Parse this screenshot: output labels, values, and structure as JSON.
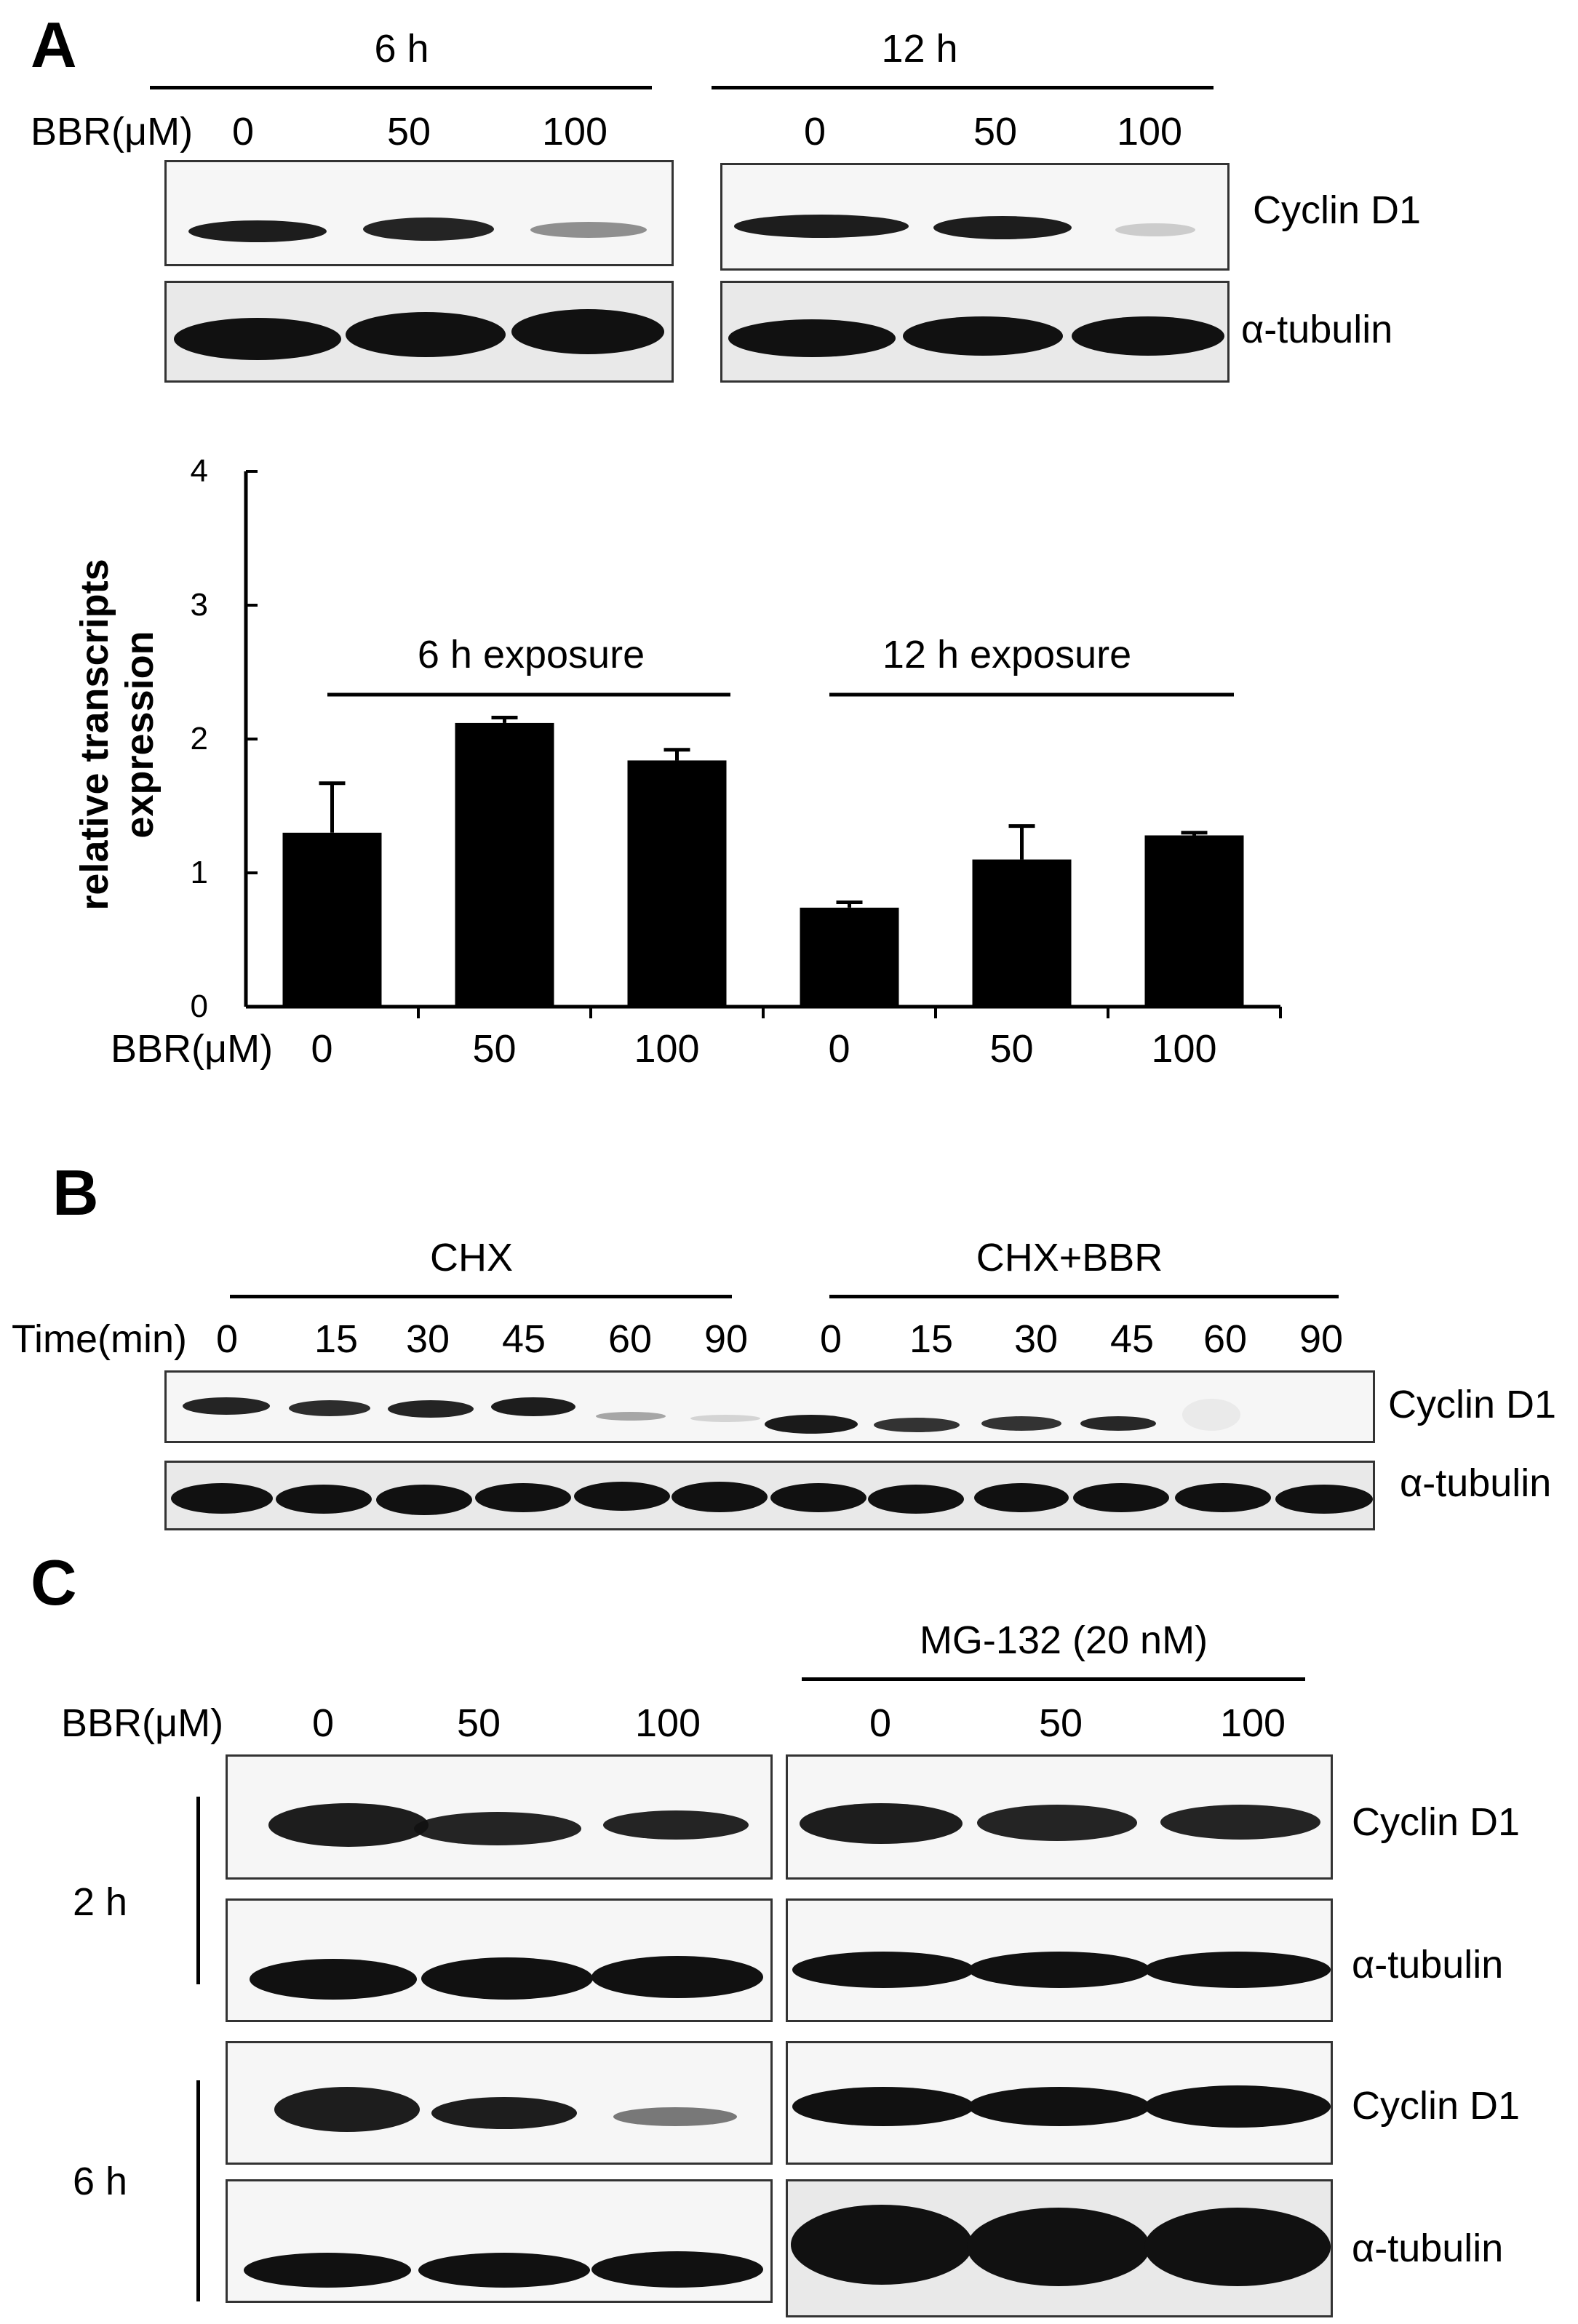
{
  "panel_a": {
    "letter": "A",
    "time_labels": [
      "6 h",
      "12 h"
    ],
    "bbr_label": "BBR(μM)",
    "doses": [
      "0",
      "50",
      "100"
    ],
    "protein_labels": [
      "Cyclin D1",
      "α-tubulin"
    ]
  },
  "chart_data": {
    "type": "bar",
    "ylabel": "relative transcripts expression",
    "ylim": [
      0,
      4
    ],
    "yticks": [
      "0",
      "1",
      "2",
      "3",
      "4"
    ],
    "x_axis_label": "BBR(μM)",
    "categories": [
      "0",
      "50",
      "100",
      "0",
      "50",
      "100"
    ],
    "values": [
      1.3,
      2.12,
      1.84,
      0.74,
      1.1,
      1.28
    ],
    "errors": [
      0.37,
      0.04,
      0.08,
      0.04,
      0.25,
      0.02
    ],
    "bar_color": "#000000",
    "group_labels": [
      "6 h exposure",
      "12 h exposure"
    ],
    "grid": false
  },
  "panel_b": {
    "letter": "B",
    "group_labels": [
      "CHX",
      "CHX+BBR"
    ],
    "time_label": "Time(min)",
    "times": [
      "0",
      "15",
      "30",
      "45",
      "60",
      "90",
      "0",
      "15",
      "30",
      "45",
      "60",
      "90"
    ],
    "protein_labels": [
      "Cyclin D1",
      "α-tubulin"
    ]
  },
  "panel_c": {
    "letter": "C",
    "treatment_label": "MG-132 (20 nM)",
    "bbr_label": "BBR(μM)",
    "doses": [
      "0",
      "50",
      "100",
      "0",
      "50",
      "100"
    ],
    "time_labels": [
      "2 h",
      "6 h"
    ],
    "protein_labels": [
      "Cyclin D1",
      "α-tubulin",
      "Cyclin D1",
      "α-tubulin"
    ]
  }
}
